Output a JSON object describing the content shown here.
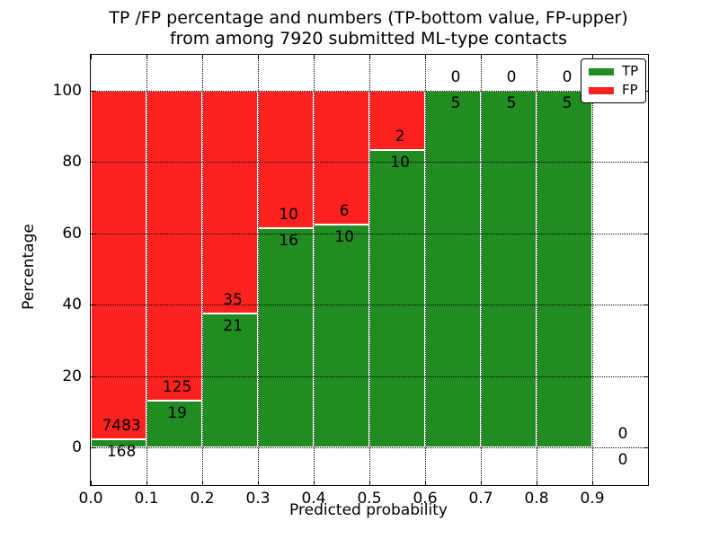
{
  "chart_data": {
    "type": "bar",
    "stacked": true,
    "note": "each 0.1-wide bin stacked to 100%; bar heights are TP/FP share of bin total; numeric labels are raw counts",
    "title_line1": "TP /FP percentage and numbers (TP-bottom value, FP-upper)",
    "title_line2": "from among 7920 submitted ML-type contacts",
    "xlabel": "Predicted probability",
    "ylabel": "Percentage",
    "bin_width": 0.1,
    "bin_starts": [
      0.0,
      0.1,
      0.2,
      0.3,
      0.4,
      0.5,
      0.6,
      0.7,
      0.8,
      0.9
    ],
    "series": [
      {
        "name": "TP",
        "color": "#218c21",
        "counts": [
          168,
          19,
          21,
          16,
          10,
          10,
          5,
          5,
          5,
          0
        ]
      },
      {
        "name": "FP",
        "color": "#fc2220",
        "counts": [
          7483,
          125,
          35,
          10,
          6,
          2,
          0,
          0,
          0,
          0
        ]
      }
    ],
    "xticks": [
      "0.0",
      "0.1",
      "0.2",
      "0.3",
      "0.4",
      "0.5",
      "0.6",
      "0.7",
      "0.8",
      "0.9"
    ],
    "yticks": [
      0,
      20,
      40,
      60,
      80,
      100
    ],
    "xlim": [
      0.0,
      1.0
    ],
    "ylim": [
      -10.6,
      110.1
    ],
    "grid": {
      "style": "dotted",
      "color": "#000000"
    },
    "bar_edge_color": "#ffffff",
    "background": "#ffffff",
    "legend": {
      "position": "upper-right",
      "entries": [
        {
          "label": "TP",
          "color": "#218c21"
        },
        {
          "label": "FP",
          "color": "#fc2220"
        }
      ]
    }
  }
}
